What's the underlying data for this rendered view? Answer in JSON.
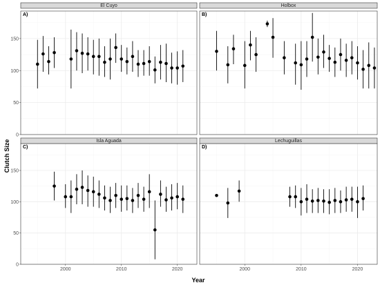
{
  "chart_data": {
    "type": "scatter",
    "xlabel": "Year",
    "ylabel": "Clutch Size",
    "xlim": [
      1992,
      2023.5
    ],
    "ylim": [
      0,
      193
    ],
    "x_ticks": [
      2000,
      2010,
      2020
    ],
    "y_ticks": [
      0,
      50,
      100,
      150
    ],
    "grid": true,
    "error_bars": true,
    "panels": [
      {
        "tag": "A)",
        "title": "El Cuyo",
        "points": [
          {
            "x": 1995,
            "y": 110,
            "lo": 72,
            "hi": 148
          },
          {
            "x": 1996,
            "y": 126,
            "lo": 98,
            "hi": 154
          },
          {
            "x": 1997,
            "y": 114,
            "lo": 94,
            "hi": 138
          },
          {
            "x": 1998,
            "y": 128,
            "lo": 104,
            "hi": 152
          },
          {
            "x": 2001,
            "y": 118,
            "lo": 72,
            "hi": 164
          },
          {
            "x": 2002,
            "y": 131,
            "lo": 100,
            "hi": 160
          },
          {
            "x": 2003,
            "y": 127,
            "lo": 96,
            "hi": 158
          },
          {
            "x": 2004,
            "y": 126,
            "lo": 100,
            "hi": 152
          },
          {
            "x": 2005,
            "y": 122,
            "lo": 94,
            "hi": 148
          },
          {
            "x": 2006,
            "y": 122,
            "lo": 92,
            "hi": 150
          },
          {
            "x": 2007,
            "y": 113,
            "lo": 90,
            "hi": 138
          },
          {
            "x": 2008,
            "y": 118,
            "lo": 86,
            "hi": 150
          },
          {
            "x": 2009,
            "y": 136,
            "lo": 112,
            "hi": 158
          },
          {
            "x": 2010,
            "y": 118,
            "lo": 98,
            "hi": 140
          },
          {
            "x": 2011,
            "y": 114,
            "lo": 94,
            "hi": 136
          },
          {
            "x": 2012,
            "y": 122,
            "lo": 98,
            "hi": 146
          },
          {
            "x": 2013,
            "y": 110,
            "lo": 90,
            "hi": 132
          },
          {
            "x": 2014,
            "y": 111,
            "lo": 92,
            "hi": 132
          },
          {
            "x": 2015,
            "y": 114,
            "lo": 92,
            "hi": 138
          },
          {
            "x": 2016,
            "y": 101,
            "lo": 80,
            "hi": 122
          },
          {
            "x": 2017,
            "y": 113,
            "lo": 86,
            "hi": 140
          },
          {
            "x": 2018,
            "y": 111,
            "lo": 82,
            "hi": 142
          },
          {
            "x": 2019,
            "y": 104,
            "lo": 80,
            "hi": 128
          },
          {
            "x": 2020,
            "y": 104,
            "lo": 78,
            "hi": 130
          },
          {
            "x": 2021,
            "y": 107,
            "lo": 82,
            "hi": 132
          }
        ]
      },
      {
        "tag": "B)",
        "title": "Holbox",
        "points": [
          {
            "x": 1995,
            "y": 130,
            "lo": 100,
            "hi": 162
          },
          {
            "x": 1997,
            "y": 109,
            "lo": 80,
            "hi": 138
          },
          {
            "x": 1998,
            "y": 134,
            "lo": 110,
            "hi": 156
          },
          {
            "x": 2000,
            "y": 108,
            "lo": 72,
            "hi": 146
          },
          {
            "x": 2001,
            "y": 140,
            "lo": 116,
            "hi": 162
          },
          {
            "x": 2002,
            "y": 125,
            "lo": 98,
            "hi": 152
          },
          {
            "x": 2004,
            "y": 173,
            "lo": 168,
            "hi": 178
          },
          {
            "x": 2005,
            "y": 152,
            "lo": 120,
            "hi": 182
          },
          {
            "x": 2007,
            "y": 120,
            "lo": 94,
            "hi": 146
          },
          {
            "x": 2009,
            "y": 112,
            "lo": 78,
            "hi": 142
          },
          {
            "x": 2010,
            "y": 109,
            "lo": 70,
            "hi": 146
          },
          {
            "x": 2011,
            "y": 118,
            "lo": 90,
            "hi": 146
          },
          {
            "x": 2012,
            "y": 152,
            "lo": 114,
            "hi": 190
          },
          {
            "x": 2013,
            "y": 121,
            "lo": 94,
            "hi": 150
          },
          {
            "x": 2014,
            "y": 129,
            "lo": 104,
            "hi": 156
          },
          {
            "x": 2015,
            "y": 119,
            "lo": 98,
            "hi": 140
          },
          {
            "x": 2016,
            "y": 113,
            "lo": 90,
            "hi": 136
          },
          {
            "x": 2017,
            "y": 125,
            "lo": 100,
            "hi": 150
          },
          {
            "x": 2018,
            "y": 116,
            "lo": 90,
            "hi": 142
          },
          {
            "x": 2019,
            "y": 120,
            "lo": 94,
            "hi": 146
          },
          {
            "x": 2020,
            "y": 112,
            "lo": 86,
            "hi": 138
          },
          {
            "x": 2021,
            "y": 102,
            "lo": 72,
            "hi": 132
          },
          {
            "x": 2022,
            "y": 108,
            "lo": 72,
            "hi": 144
          },
          {
            "x": 2023,
            "y": 104,
            "lo": 72,
            "hi": 136
          },
          {
            "x": 2024,
            "y": 112,
            "lo": 82,
            "hi": 142
          }
        ]
      },
      {
        "tag": "C)",
        "title": "Isla Aguada",
        "points": [
          {
            "x": 1998,
            "y": 125,
            "lo": 102,
            "hi": 148
          },
          {
            "x": 2000,
            "y": 108,
            "lo": 90,
            "hi": 128
          },
          {
            "x": 2001,
            "y": 108,
            "lo": 82,
            "hi": 134
          },
          {
            "x": 2002,
            "y": 120,
            "lo": 96,
            "hi": 144
          },
          {
            "x": 2003,
            "y": 123,
            "lo": 96,
            "hi": 150
          },
          {
            "x": 2004,
            "y": 118,
            "lo": 92,
            "hi": 142
          },
          {
            "x": 2005,
            "y": 116,
            "lo": 92,
            "hi": 140
          },
          {
            "x": 2006,
            "y": 112,
            "lo": 90,
            "hi": 134
          },
          {
            "x": 2007,
            "y": 106,
            "lo": 86,
            "hi": 126
          },
          {
            "x": 2008,
            "y": 102,
            "lo": 82,
            "hi": 124
          },
          {
            "x": 2009,
            "y": 110,
            "lo": 90,
            "hi": 130
          },
          {
            "x": 2010,
            "y": 104,
            "lo": 84,
            "hi": 126
          },
          {
            "x": 2011,
            "y": 105,
            "lo": 86,
            "hi": 126
          },
          {
            "x": 2012,
            "y": 102,
            "lo": 82,
            "hi": 122
          },
          {
            "x": 2013,
            "y": 110,
            "lo": 90,
            "hi": 130
          },
          {
            "x": 2014,
            "y": 104,
            "lo": 84,
            "hi": 124
          },
          {
            "x": 2015,
            "y": 116,
            "lo": 90,
            "hi": 144
          },
          {
            "x": 2016,
            "y": 55,
            "lo": 8,
            "hi": 102
          },
          {
            "x": 2017,
            "y": 112,
            "lo": 92,
            "hi": 134
          },
          {
            "x": 2018,
            "y": 103,
            "lo": 84,
            "hi": 124
          },
          {
            "x": 2019,
            "y": 106,
            "lo": 86,
            "hi": 128
          },
          {
            "x": 2020,
            "y": 108,
            "lo": 88,
            "hi": 130
          },
          {
            "x": 2021,
            "y": 104,
            "lo": 82,
            "hi": 126
          }
        ]
      },
      {
        "tag": "D)",
        "title": "Lechuguillas",
        "points": [
          {
            "x": 1995,
            "y": 110,
            "lo": 108,
            "hi": 112
          },
          {
            "x": 1997,
            "y": 98,
            "lo": 74,
            "hi": 122
          },
          {
            "x": 1999,
            "y": 117,
            "lo": 100,
            "hi": 134
          },
          {
            "x": 2008,
            "y": 108,
            "lo": 92,
            "hi": 124
          },
          {
            "x": 2009,
            "y": 108,
            "lo": 90,
            "hi": 126
          },
          {
            "x": 2010,
            "y": 100,
            "lo": 78,
            "hi": 122
          },
          {
            "x": 2011,
            "y": 104,
            "lo": 82,
            "hi": 128
          },
          {
            "x": 2012,
            "y": 101,
            "lo": 82,
            "hi": 120
          },
          {
            "x": 2013,
            "y": 102,
            "lo": 82,
            "hi": 122
          },
          {
            "x": 2014,
            "y": 101,
            "lo": 82,
            "hi": 120
          },
          {
            "x": 2015,
            "y": 99,
            "lo": 80,
            "hi": 120
          },
          {
            "x": 2016,
            "y": 102,
            "lo": 82,
            "hi": 122
          },
          {
            "x": 2017,
            "y": 100,
            "lo": 82,
            "hi": 118
          },
          {
            "x": 2018,
            "y": 103,
            "lo": 84,
            "hi": 124
          },
          {
            "x": 2019,
            "y": 104,
            "lo": 84,
            "hi": 124
          },
          {
            "x": 2020,
            "y": 100,
            "lo": 74,
            "hi": 124
          },
          {
            "x": 2021,
            "y": 105,
            "lo": 86,
            "hi": 126
          }
        ]
      }
    ]
  },
  "colors": {
    "panel_bg": "#ffffff",
    "strip_bg": "#d9d9d9",
    "grid_major": "#ebebeb",
    "grid_minor": "#f5f5f5",
    "border": "#333333",
    "point": "#000000"
  }
}
